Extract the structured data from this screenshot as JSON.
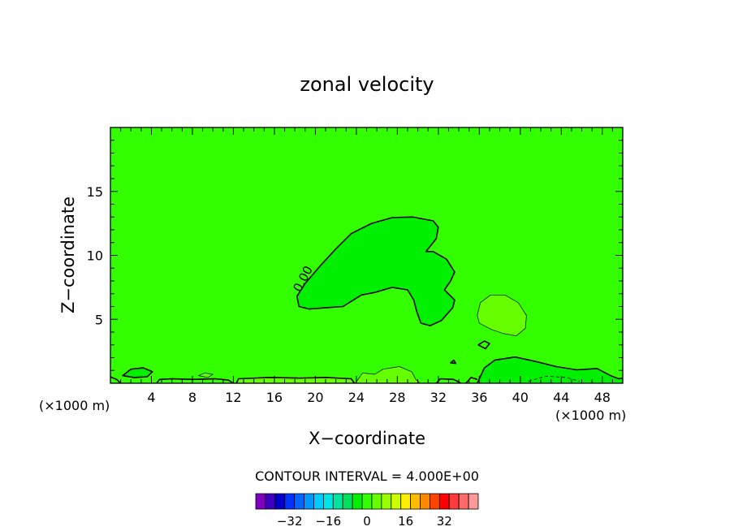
{
  "chart_data": {
    "type": "heatmap",
    "title": "zonal velocity",
    "xlabel": "X−coordinate",
    "ylabel": "Z−coordinate",
    "x_unit_left": "(×1000 m)",
    "x_unit_right": "(×1000 m)",
    "xlim": [
      0,
      50
    ],
    "ylim": [
      0,
      20
    ],
    "x_ticks": [
      "4",
      "8",
      "12",
      "16",
      "20",
      "24",
      "28",
      "32",
      "36",
      "40",
      "44",
      "48"
    ],
    "y_ticks": [
      "5",
      "10",
      "15"
    ],
    "contour_label": "0.00",
    "contour_interval_text": "CONTOUR INTERVAL = 4.000E+00",
    "colorbar": {
      "colors": [
        "#7f00bf",
        "#3f00bf",
        "#0000c8",
        "#0033ff",
        "#0066ff",
        "#0099ff",
        "#00ccff",
        "#00e5e5",
        "#00e5a0",
        "#00e060",
        "#00f000",
        "#33ff00",
        "#66ff00",
        "#99ff00",
        "#ccff00",
        "#ffee00",
        "#ffbb00",
        "#ff8800",
        "#ff4400",
        "#ff0000",
        "#ff3a3a",
        "#ff6b6b",
        "#ff9999"
      ],
      "tick_labels": [
        "−32",
        "−16",
        "0",
        "16",
        "32"
      ],
      "tick_values": [
        -32,
        -16,
        0,
        16,
        32
      ]
    },
    "background_fill": "#33ff00",
    "regions": [
      {
        "fill": "#00f000",
        "points": [
          [
            18.2,
            6.8
          ],
          [
            19,
            7.8
          ],
          [
            20.5,
            9.2
          ],
          [
            22,
            10.5
          ],
          [
            23.5,
            11.7
          ],
          [
            25.5,
            12.5
          ],
          [
            27.5,
            12.95
          ],
          [
            29.5,
            13
          ],
          [
            31.5,
            12.7
          ],
          [
            32,
            12.2
          ],
          [
            31.8,
            11.3
          ],
          [
            30.8,
            10.3
          ],
          [
            31.5,
            10.3
          ],
          [
            32.8,
            9.7
          ],
          [
            33.6,
            8.7
          ],
          [
            33.2,
            8
          ],
          [
            32.6,
            7.3
          ],
          [
            33.6,
            6.5
          ],
          [
            33.4,
            5.9
          ],
          [
            32.3,
            4.9
          ],
          [
            31.2,
            4.5
          ],
          [
            30.3,
            4.7
          ],
          [
            29.9,
            5.6
          ],
          [
            29.6,
            6.5
          ],
          [
            29,
            7.3
          ],
          [
            27.5,
            7.5
          ],
          [
            25.8,
            7.1
          ],
          [
            24.5,
            6.9
          ],
          [
            22.7,
            6
          ],
          [
            21,
            5.9
          ],
          [
            19.4,
            5.8
          ],
          [
            18.4,
            6
          ],
          [
            18.2,
            6.8
          ]
        ]
      },
      {
        "fill": "#66ff00",
        "points": [
          [
            35.8,
            5.3
          ],
          [
            36.1,
            6.3
          ],
          [
            37.1,
            6.9
          ],
          [
            38.5,
            6.9
          ],
          [
            39.8,
            6.3
          ],
          [
            40.6,
            5.3
          ],
          [
            40.5,
            4.3
          ],
          [
            39.6,
            3.7
          ],
          [
            38.3,
            3.9
          ],
          [
            37.2,
            4.2
          ],
          [
            36,
            4.7
          ],
          [
            35.8,
            5.3
          ]
        ]
      },
      {
        "fill": "#00f000",
        "points": [
          [
            35.8,
            0
          ],
          [
            36.5,
            1.2
          ],
          [
            37.5,
            1.8
          ],
          [
            39.5,
            2.05
          ],
          [
            41.5,
            1.7
          ],
          [
            43.5,
            1.3
          ],
          [
            45.5,
            1.05
          ],
          [
            47.5,
            1.15
          ],
          [
            48.8,
            0.6
          ],
          [
            49.6,
            0.35
          ],
          [
            50,
            0.4
          ],
          [
            50,
            0
          ],
          [
            35.8,
            0
          ]
        ]
      },
      {
        "fill": "#00f000",
        "points": [
          [
            1.2,
            0.6
          ],
          [
            2,
            1.1
          ],
          [
            3.2,
            1.2
          ],
          [
            4.1,
            0.9
          ],
          [
            3.6,
            0.5
          ],
          [
            2.3,
            0.45
          ],
          [
            1.2,
            0.6
          ]
        ]
      },
      {
        "fill": "#66ff00",
        "points": [
          [
            23.9,
            0
          ],
          [
            24.6,
            0.8
          ],
          [
            25.8,
            0.7
          ],
          [
            26.6,
            1.1
          ],
          [
            28.2,
            1.3
          ],
          [
            29.4,
            0.9
          ],
          [
            29.8,
            0.3
          ],
          [
            30.2,
            0
          ],
          [
            23.9,
            0
          ]
        ]
      },
      {
        "fill": "#66ff00",
        "points": [
          [
            12.3,
            0
          ],
          [
            12.5,
            0.35
          ],
          [
            15.5,
            0.45
          ],
          [
            18.5,
            0.4
          ],
          [
            21,
            0.45
          ],
          [
            23.5,
            0.35
          ],
          [
            23.8,
            0
          ],
          [
            12.3,
            0
          ]
        ]
      },
      {
        "fill": "#66ff00",
        "points": [
          [
            8.6,
            0.6
          ],
          [
            9.2,
            0.8
          ],
          [
            10,
            0.7
          ],
          [
            9.5,
            0.45
          ],
          [
            8.6,
            0.6
          ]
        ]
      }
    ],
    "contours": [
      {
        "closed": true,
        "points": [
          [
            18.2,
            6.8
          ],
          [
            19,
            7.8
          ],
          [
            20.5,
            9.2
          ],
          [
            22,
            10.5
          ],
          [
            23.5,
            11.7
          ],
          [
            25.5,
            12.5
          ],
          [
            27.5,
            12.95
          ],
          [
            29.5,
            13
          ],
          [
            31.5,
            12.7
          ],
          [
            32,
            12.2
          ],
          [
            31.8,
            11.3
          ],
          [
            30.8,
            10.3
          ],
          [
            31.5,
            10.3
          ],
          [
            32.8,
            9.7
          ],
          [
            33.6,
            8.7
          ],
          [
            33.2,
            8
          ],
          [
            32.6,
            7.3
          ],
          [
            33.6,
            6.5
          ],
          [
            33.4,
            5.9
          ],
          [
            32.3,
            4.9
          ],
          [
            31.2,
            4.5
          ],
          [
            30.3,
            4.7
          ],
          [
            29.9,
            5.6
          ],
          [
            29.6,
            6.5
          ],
          [
            29,
            7.3
          ],
          [
            27.5,
            7.5
          ],
          [
            25.8,
            7.1
          ],
          [
            24.5,
            6.9
          ],
          [
            22.7,
            6
          ],
          [
            21,
            5.9
          ],
          [
            19.4,
            5.8
          ],
          [
            18.4,
            6
          ],
          [
            18.2,
            6.8
          ]
        ]
      },
      {
        "closed": false,
        "points": [
          [
            35.8,
            0
          ],
          [
            36.5,
            1.2
          ],
          [
            37.5,
            1.8
          ],
          [
            39.5,
            2.05
          ],
          [
            41.5,
            1.7
          ],
          [
            43.5,
            1.3
          ],
          [
            45.5,
            1.05
          ],
          [
            47.5,
            1.15
          ],
          [
            48.8,
            0.6
          ],
          [
            49.6,
            0.35
          ],
          [
            50,
            0.4
          ]
        ]
      },
      {
        "closed": true,
        "points": [
          [
            1.2,
            0.6
          ],
          [
            2,
            1.1
          ],
          [
            3.2,
            1.2
          ],
          [
            4.1,
            0.9
          ],
          [
            3.6,
            0.5
          ],
          [
            2.3,
            0.45
          ],
          [
            1.2,
            0.6
          ]
        ]
      },
      {
        "closed": false,
        "points": [
          [
            0,
            0.5
          ],
          [
            0.6,
            0.3
          ],
          [
            1,
            0
          ]
        ]
      },
      {
        "closed": false,
        "points": [
          [
            4.5,
            0
          ],
          [
            4.8,
            0.3
          ],
          [
            6,
            0.35
          ],
          [
            8,
            0.3
          ],
          [
            10.2,
            0.35
          ],
          [
            11.5,
            0.25
          ],
          [
            12,
            0
          ]
        ]
      },
      {
        "closed": false,
        "points": [
          [
            12.3,
            0
          ],
          [
            12.5,
            0.35
          ],
          [
            15.5,
            0.45
          ],
          [
            18.5,
            0.4
          ],
          [
            21,
            0.45
          ],
          [
            23.5,
            0.35
          ],
          [
            23.8,
            0
          ]
        ]
      },
      {
        "closed": false,
        "points": [
          [
            31.8,
            0
          ],
          [
            32.2,
            0.35
          ],
          [
            33.5,
            0.3
          ],
          [
            34.2,
            0
          ]
        ]
      },
      {
        "closed": true,
        "points": [
          [
            35.9,
            3
          ],
          [
            36.5,
            3.3
          ],
          [
            37,
            3.1
          ],
          [
            36.6,
            2.7
          ],
          [
            35.9,
            3
          ]
        ]
      },
      {
        "closed": true,
        "points": [
          [
            33.2,
            1.6
          ],
          [
            33.5,
            1.8
          ],
          [
            33.7,
            1.55
          ],
          [
            33.2,
            1.6
          ]
        ]
      },
      {
        "closed": false,
        "points": [
          [
            34.7,
            0
          ],
          [
            35.2,
            0.45
          ],
          [
            35.8,
            0.3
          ]
        ]
      }
    ],
    "fine_contours": [
      {
        "closed": true,
        "points": [
          [
            35.8,
            5.3
          ],
          [
            36.1,
            6.3
          ],
          [
            37.1,
            6.9
          ],
          [
            38.5,
            6.9
          ],
          [
            39.8,
            6.3
          ],
          [
            40.6,
            5.3
          ],
          [
            40.5,
            4.3
          ],
          [
            39.6,
            3.7
          ],
          [
            38.3,
            3.9
          ],
          [
            37.2,
            4.2
          ],
          [
            36,
            4.7
          ],
          [
            35.8,
            5.3
          ]
        ]
      },
      {
        "closed": false,
        "points": [
          [
            23.9,
            0
          ],
          [
            24.6,
            0.8
          ],
          [
            25.8,
            0.7
          ],
          [
            26.6,
            1.1
          ],
          [
            28.2,
            1.3
          ],
          [
            29.4,
            0.9
          ],
          [
            29.8,
            0.3
          ],
          [
            30.2,
            0
          ]
        ]
      },
      {
        "closed": true,
        "points": [
          [
            8.6,
            0.6
          ],
          [
            9.2,
            0.8
          ],
          [
            10,
            0.7
          ],
          [
            9.5,
            0.45
          ],
          [
            8.6,
            0.6
          ]
        ]
      }
    ],
    "dashed_contours": [
      {
        "closed": false,
        "points": [
          [
            40.8,
            0.15
          ],
          [
            42.5,
            0.55
          ],
          [
            44.5,
            0.45
          ],
          [
            45.8,
            0.15
          ]
        ]
      }
    ]
  }
}
